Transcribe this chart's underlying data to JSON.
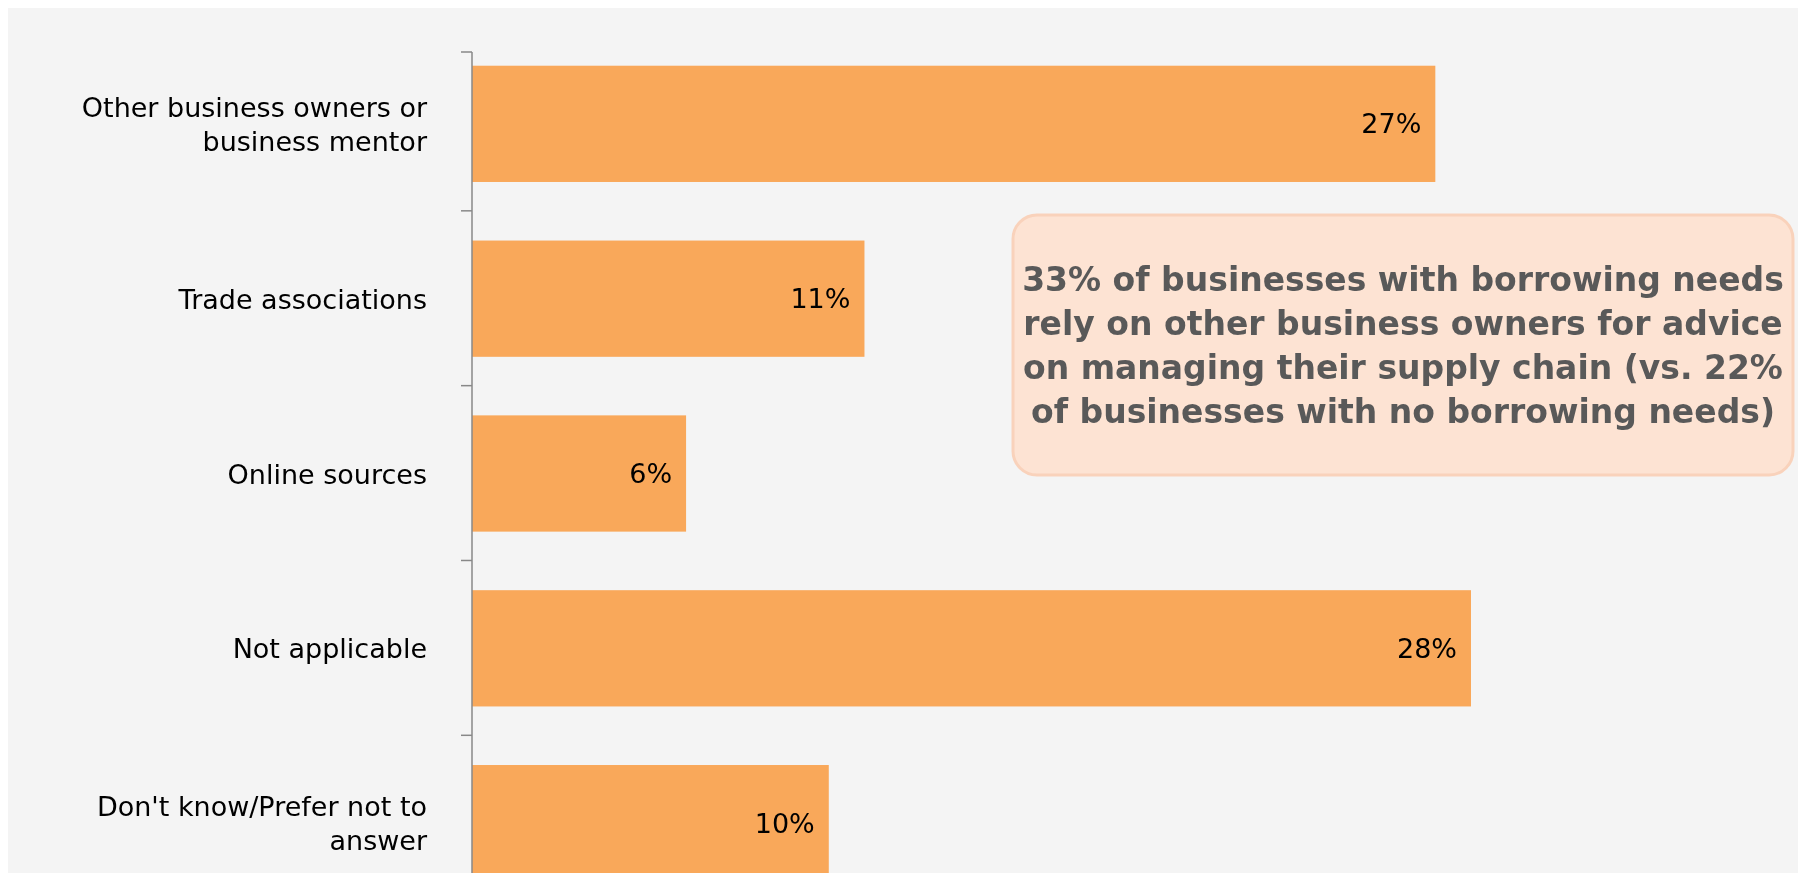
{
  "chart_data": {
    "type": "bar",
    "orientation": "horizontal",
    "categories": [
      "Other business owners or business mentor",
      "Trade associations",
      "Online sources",
      "Not applicable",
      "Don't know/Prefer not to answer"
    ],
    "values": [
      27,
      11,
      6,
      28,
      10
    ],
    "color": "#f9a85a",
    "data_labels": true,
    "value_labels": [
      "27%",
      "11%",
      "6%",
      "28%",
      "10%"
    ],
    "annotations": [
      "33% of businesses with borrowing needs rely on other business owners for advice on managing their supply chain (vs. 22% of businesses with no borrowing needs)"
    ]
  }
}
